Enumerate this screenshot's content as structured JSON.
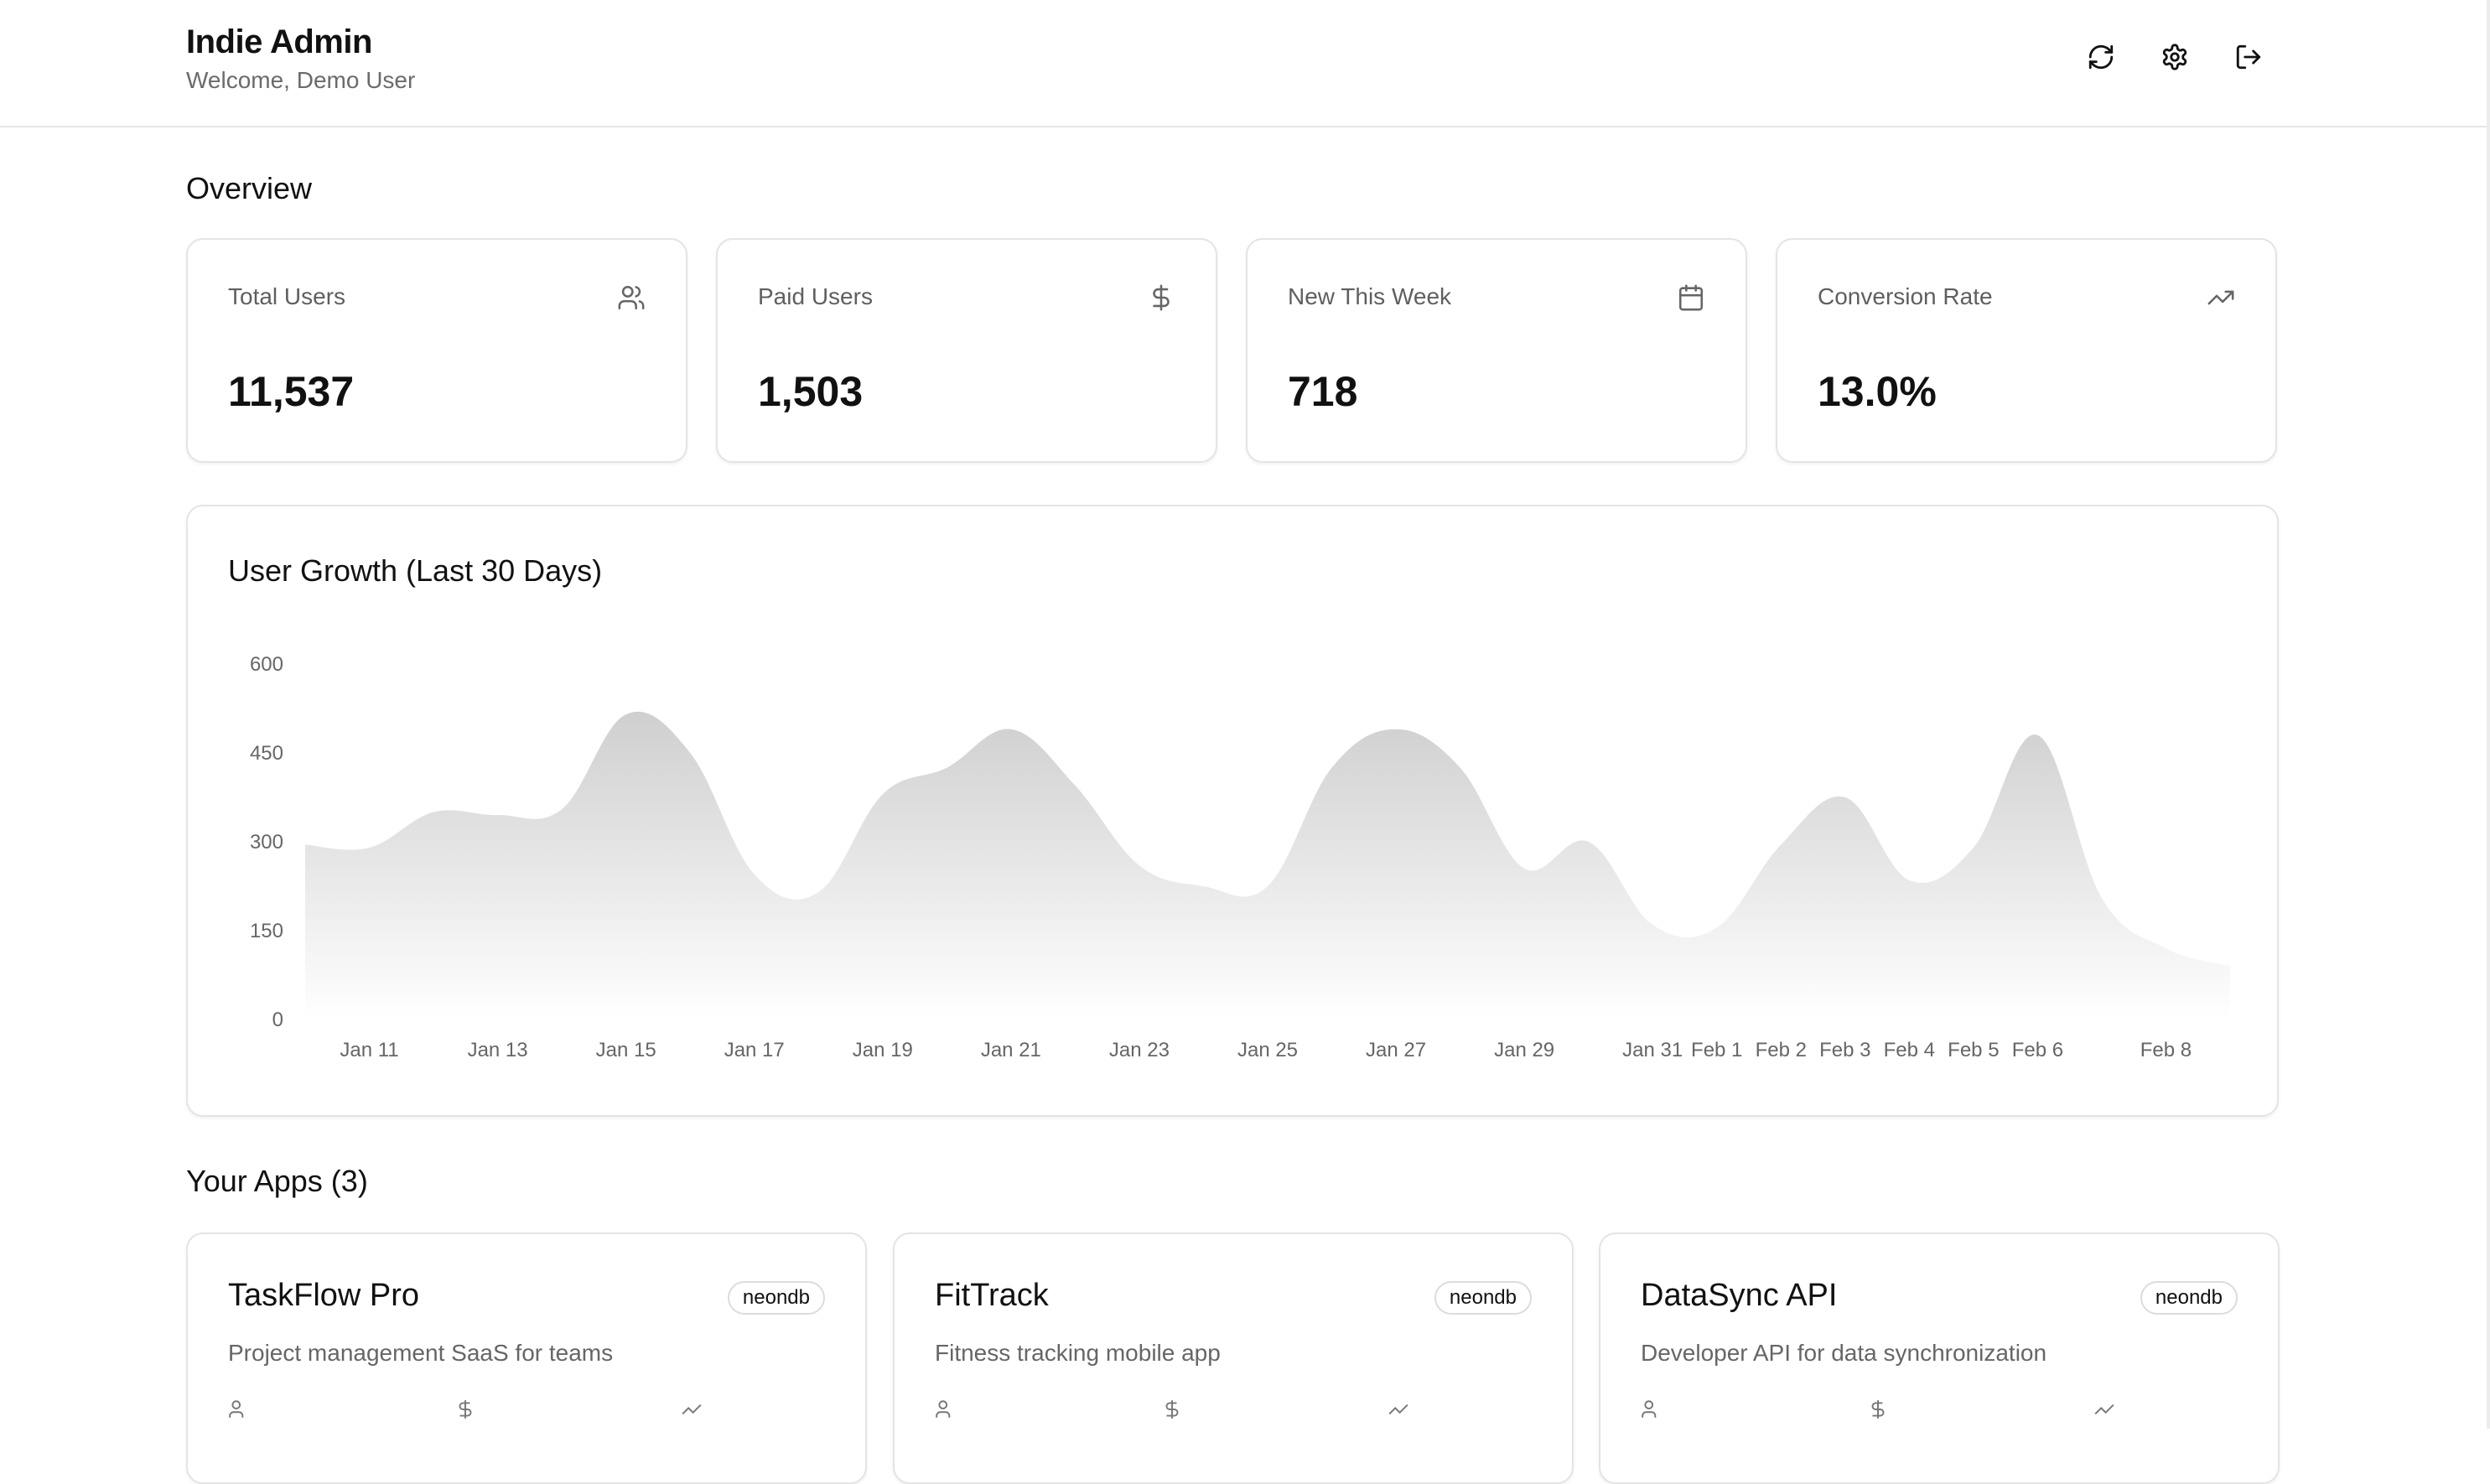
{
  "header": {
    "title": "Indie Admin",
    "subtitle": "Welcome, Demo User",
    "actions": [
      {
        "name": "refresh-icon"
      },
      {
        "name": "gear-icon"
      },
      {
        "name": "logout-icon"
      }
    ]
  },
  "overview": {
    "title": "Overview",
    "stats": [
      {
        "label": "Total Users",
        "value": "11,537",
        "icon": "users-icon"
      },
      {
        "label": "Paid Users",
        "value": "1,503",
        "icon": "dollar-icon"
      },
      {
        "label": "New This Week",
        "value": "718",
        "icon": "calendar-icon"
      },
      {
        "label": "Conversion Rate",
        "value": "13.0%",
        "icon": "trending-up-icon"
      }
    ]
  },
  "chart_data": {
    "type": "area",
    "title": "User Growth (Last 30 Days)",
    "xlabel": "",
    "ylabel": "",
    "ylim": [
      0,
      600
    ],
    "yticks": [
      "0",
      "150",
      "300",
      "450",
      "600"
    ],
    "grid": false,
    "legend": "none",
    "x": [
      "Jan 10",
      "Jan 11",
      "Jan 12",
      "Jan 13",
      "Jan 14",
      "Jan 15",
      "Jan 16",
      "Jan 17",
      "Jan 18",
      "Jan 19",
      "Jan 20",
      "Jan 21",
      "Jan 22",
      "Jan 23",
      "Jan 24",
      "Jan 25",
      "Jan 26",
      "Jan 27",
      "Jan 28",
      "Jan 29",
      "Jan 30",
      "Jan 31",
      "Feb 1",
      "Feb 2",
      "Feb 3",
      "Feb 4",
      "Feb 5",
      "Feb 6",
      "Feb 7",
      "Feb 8",
      "Feb 9"
    ],
    "xticks": [
      "Jan 11",
      "Jan 13",
      "Jan 15",
      "Jan 17",
      "Jan 19",
      "Jan 21",
      "Jan 23",
      "Jan 25",
      "Jan 27",
      "Jan 29",
      "Jan 31",
      "Feb 1",
      "Feb 2",
      "Feb 3",
      "Feb 4",
      "Feb 5",
      "Feb 6",
      "Feb 8"
    ],
    "series": [
      {
        "values": [
          295,
          290,
          350,
          345,
          355,
          515,
          450,
          245,
          215,
          380,
          425,
          490,
          395,
          260,
          225,
          225,
          425,
          490,
          425,
          255,
          300,
          160,
          155,
          295,
          375,
          235,
          290,
          480,
          205,
          120,
          90
        ]
      }
    ]
  },
  "apps": {
    "title": "Your Apps (3)",
    "items": [
      {
        "name": "TaskFlow Pro",
        "badge": "neondb",
        "description": "Project management SaaS for teams"
      },
      {
        "name": "FitTrack",
        "badge": "neondb",
        "description": "Fitness tracking mobile app"
      },
      {
        "name": "DataSync API",
        "badge": "neondb",
        "description": "Developer API for data synchronization"
      }
    ]
  },
  "colors": {
    "area_top": "#cfcfcf",
    "area_bottom": "#ffffff",
    "card_border": "#e4e4e4",
    "muted_text": "#6b6b6b"
  }
}
